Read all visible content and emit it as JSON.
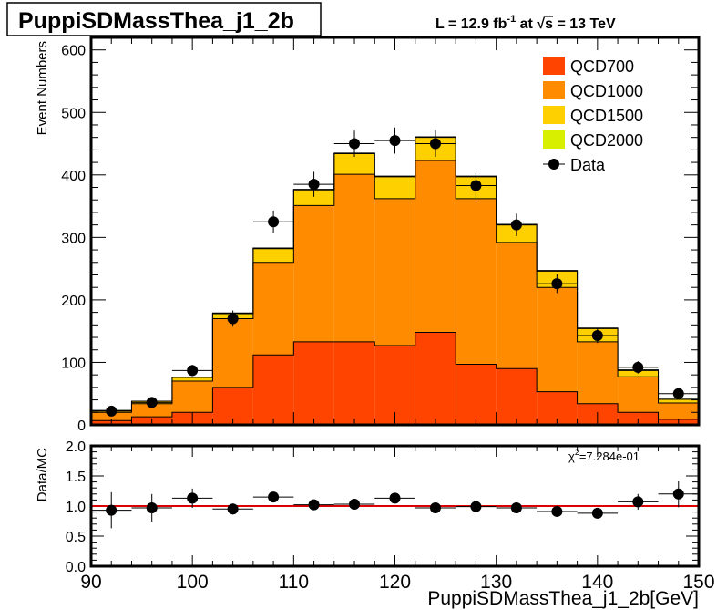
{
  "title_box": "PuppiSDMassThea_j1_2b",
  "lumi": {
    "prefix": "L = 12.9 fb",
    "sup": "-1",
    "mid": " at ",
    "sqrt": "√",
    "s": "s",
    "suffix": " = 13 TeV"
  },
  "colors": {
    "QCD700": "#ff4400",
    "QCD1000": "#ff8c00",
    "QCD1500": "#ffd000",
    "QCD2000": "#d8f000",
    "data": "#000000",
    "ratio_line": "#dd0000"
  },
  "chart_data": [
    {
      "type": "bar",
      "subtype": "stacked-histogram-with-data-points",
      "ylabel": "Event Numbers",
      "xlim": [
        90,
        150
      ],
      "ylim": [
        0,
        620
      ],
      "y_ticks": [
        0,
        100,
        200,
        300,
        400,
        500,
        600
      ],
      "bin_edges": [
        90,
        94,
        98,
        102,
        106,
        110,
        114,
        118,
        122,
        126,
        130,
        134,
        138,
        142,
        146,
        150
      ],
      "series": [
        {
          "name": "QCD700",
          "values": [
            7,
            13,
            20,
            60,
            112,
            133,
            133,
            127,
            148,
            97,
            90,
            53,
            34,
            20,
            9
          ]
        },
        {
          "name": "QCD1000",
          "values": [
            13,
            21,
            50,
            110,
            148,
            218,
            268,
            235,
            275,
            265,
            202,
            167,
            99,
            57,
            26
          ]
        },
        {
          "name": "QCD1500",
          "values": [
            3,
            4,
            6,
            8,
            22,
            25,
            33,
            35,
            37,
            35,
            28,
            26,
            21,
            10,
            6
          ]
        },
        {
          "name": "QCD2000",
          "values": [
            0,
            0,
            0,
            1,
            1,
            1,
            1,
            1,
            1,
            1,
            1,
            1,
            1,
            1,
            0
          ]
        }
      ],
      "data_points": {
        "name": "Data",
        "x": [
          92,
          96,
          100,
          104,
          108,
          112,
          116,
          120,
          124,
          128,
          132,
          136,
          140,
          144,
          148
        ],
        "y": [
          22,
          36,
          87,
          170,
          325,
          385,
          450,
          455,
          450,
          383,
          320,
          226,
          143,
          92,
          50
        ],
        "yerr": [
          5,
          6,
          9,
          13,
          18,
          20,
          21,
          21,
          21,
          20,
          18,
          15,
          12,
          10,
          7
        ]
      },
      "legend": [
        "QCD700",
        "QCD1000",
        "QCD1500",
        "QCD2000",
        "Data"
      ],
      "legend_position": "top-right"
    },
    {
      "type": "scatter",
      "ylabel": "Data/MC",
      "xlabel": "PuppiSDMassThea_j1_2b[GeV]",
      "xlim": [
        90,
        150
      ],
      "ylim": [
        0,
        2.0
      ],
      "x_ticks": [
        90,
        100,
        110,
        120,
        130,
        140,
        150
      ],
      "y_ticks": [
        "0.0",
        "0.5",
        "1.0",
        "1.5",
        "2.0"
      ],
      "reference_line": 1.0,
      "annotation": {
        "base": "χ",
        "sup": "2",
        "rest": "=7.284e-01"
      },
      "x": [
        92,
        96,
        100,
        104,
        108,
        112,
        116,
        120,
        124,
        128,
        132,
        136,
        140,
        144,
        148
      ],
      "y": [
        0.93,
        0.97,
        1.13,
        0.95,
        1.15,
        1.02,
        1.03,
        1.13,
        0.97,
        0.99,
        0.97,
        0.91,
        0.88,
        1.07,
        1.2
      ],
      "yerr": [
        0.3,
        0.23,
        0.16,
        0.09,
        0.07,
        0.06,
        0.05,
        0.05,
        0.05,
        0.05,
        0.06,
        0.07,
        0.08,
        0.13,
        0.22
      ]
    }
  ]
}
